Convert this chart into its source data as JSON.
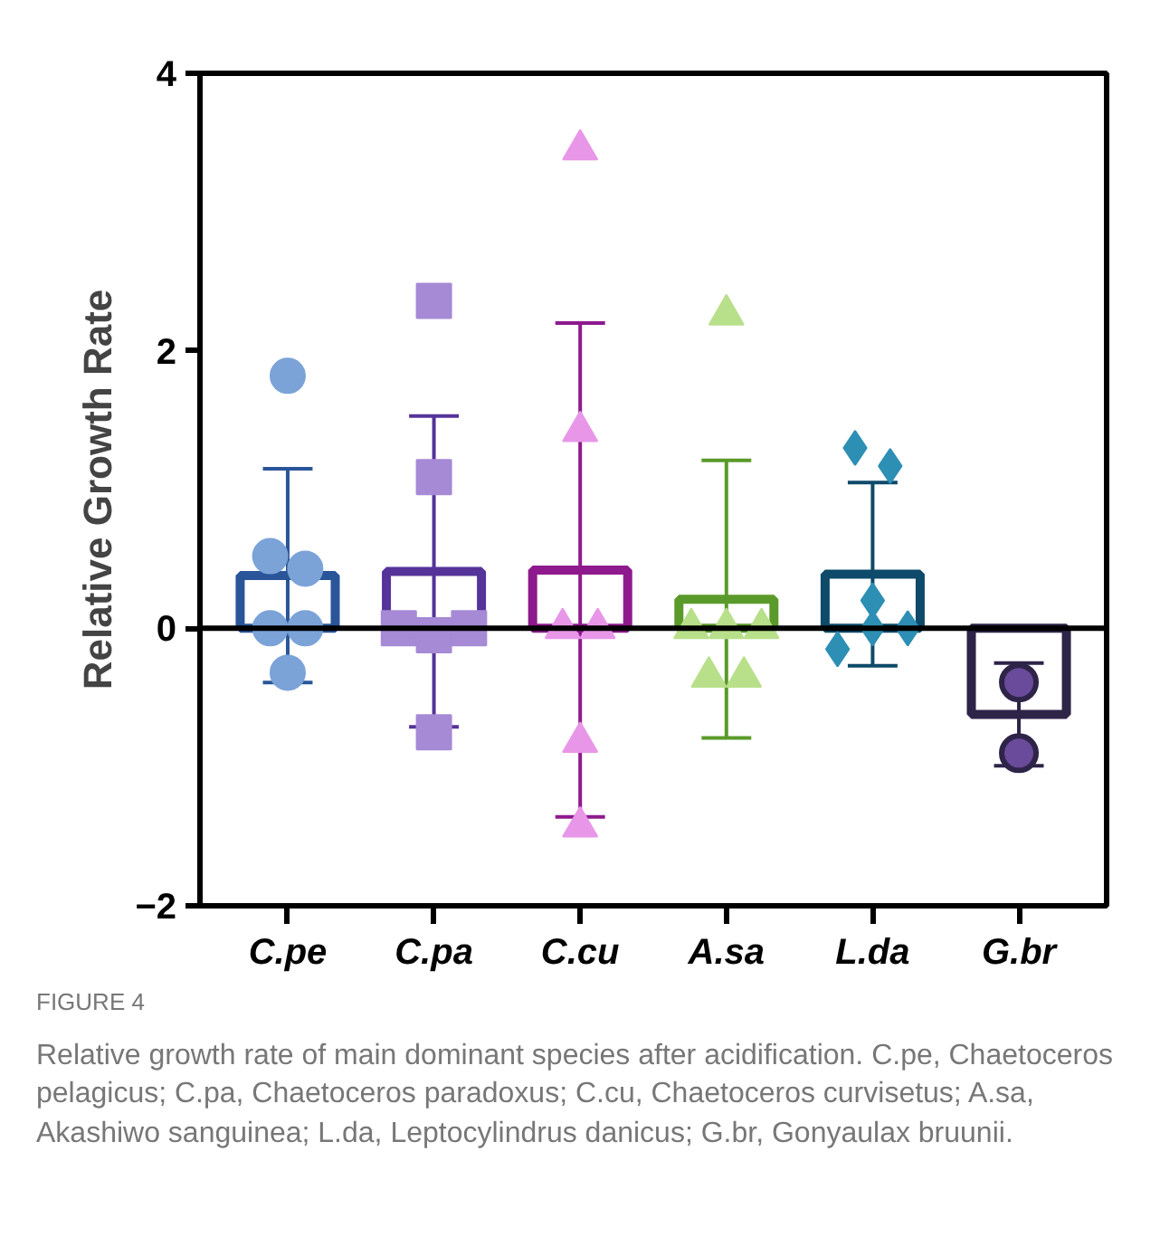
{
  "chart_data": {
    "type": "bar",
    "ylabel": "Relative Growth Rate",
    "categories": [
      "C.pe",
      "C.pa",
      "C.cu",
      "A.sa",
      "L.da",
      "G.br"
    ],
    "values": [
      0.38,
      0.41,
      0.42,
      0.21,
      0.39,
      -0.62
    ],
    "colors": [
      "#2a5599",
      "#553399",
      "#8e1a8e",
      "#5a9a2a",
      "#0e4a6a",
      "#2e2448"
    ],
    "errors": [
      0.77,
      1.12,
      1.78,
      1.0,
      0.66,
      0.37
    ],
    "series": [
      {
        "type": "scatter",
        "marker": "circle",
        "color": "#7ba3d8",
        "x": [
          "C.pe",
          "C.pe",
          "C.pe",
          "C.pe",
          "C.pe",
          "C.pe"
        ],
        "values": [
          1.82,
          0.52,
          0.43,
          0,
          0,
          -0.32
        ]
      },
      {
        "type": "scatter",
        "marker": "square",
        "color": "#a68ad6",
        "x": [
          "C.pa",
          "C.pa",
          "C.pa",
          "C.pa",
          "C.pa",
          "C.pa"
        ],
        "values": [
          2.36,
          1.09,
          0,
          -0.05,
          0,
          -0.75
        ]
      },
      {
        "type": "scatter",
        "marker": "triangle",
        "color": "#e896e8",
        "x": [
          "C.cu",
          "C.cu",
          "C.cu",
          "C.cu",
          "C.cu",
          "C.cu"
        ],
        "values": [
          3.45,
          1.42,
          0,
          0,
          -0.82,
          -1.43
        ]
      },
      {
        "type": "scatter",
        "marker": "triangle",
        "color": "#b8e08a",
        "x": [
          "A.sa",
          "A.sa",
          "A.sa",
          "A.sa",
          "A.sa",
          "A.sa"
        ],
        "values": [
          2.26,
          0,
          0,
          0,
          -0.35,
          -0.35
        ]
      },
      {
        "type": "scatter",
        "marker": "diamond",
        "color": "#2e8fb5",
        "x": [
          "L.da",
          "L.da",
          "L.da",
          "L.da",
          "L.da",
          "L.da"
        ],
        "values": [
          1.3,
          1.17,
          0.2,
          -0.15,
          0,
          0
        ]
      },
      {
        "type": "scatter",
        "marker": "circle",
        "color": "#6a4a9a",
        "x": [
          "G.br",
          "G.br"
        ],
        "values": [
          -0.39,
          -0.9
        ]
      }
    ],
    "ylim": [
      -2,
      4
    ],
    "yticks": [
      -2,
      0,
      2,
      4
    ],
    "grid": false,
    "ref_lines": [
      {
        "axis": "y",
        "value": 0,
        "color": "#000000"
      }
    ],
    "annotations": [
      "FIGURE 4",
      "Relative growth rate of main dominant species after acidification. C.pe, Chaetoceros pelagicus; C.pa, Chaetoceros paradoxus; C.cu, Chaetoceros curvisetus; A.sa, Akashiwo sanguinea; L.da, Leptocylindrus danicus; G.br, Gonyaulax bruunii."
    ]
  }
}
